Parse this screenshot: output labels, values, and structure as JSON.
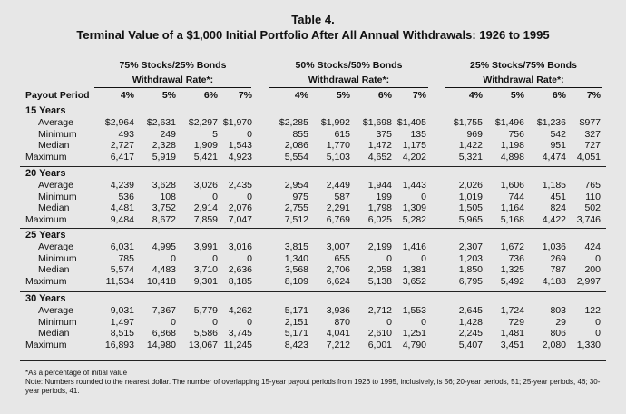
{
  "title": "Table 4.",
  "subtitle": "Terminal Value of a $1,000 Initial Portfolio After All Annual Withdrawals: 1926 to 1995",
  "groups": [
    {
      "line1": "75% Stocks/25% Bonds",
      "line2": "Withdrawal Rate*:"
    },
    {
      "line1": "50% Stocks/50% Bonds",
      "line2": "Withdrawal Rate*:"
    },
    {
      "line1": "25% Stocks/75% Bonds",
      "line2": "Withdrawal Rate*:"
    }
  ],
  "payout_header": "Payout Period",
  "rate_headers": [
    "4%",
    "5%",
    "6%",
    "7%",
    "4%",
    "5%",
    "6%",
    "7%",
    "4%",
    "5%",
    "6%",
    "7%"
  ],
  "sections": [
    {
      "label": "15 Years",
      "rows": [
        {
          "label": "Average",
          "values": [
            "$2,964",
            "$2,631",
            "$2,297",
            "$1,970",
            "$2,285",
            "$1,992",
            "$1,698",
            "$1,405",
            "$1,755",
            "$1,496",
            "$1,236",
            "$977"
          ]
        },
        {
          "label": "Minimum",
          "values": [
            "493",
            "249",
            "5",
            "0",
            "855",
            "615",
            "375",
            "135",
            "969",
            "756",
            "542",
            "327"
          ]
        },
        {
          "label": "Median",
          "values": [
            "2,727",
            "2,328",
            "1,909",
            "1,543",
            "2,086",
            "1,770",
            "1,472",
            "1,175",
            "1,422",
            "1,198",
            "951",
            "727"
          ]
        },
        {
          "label": "Maximum",
          "values": [
            "6,417",
            "5,919",
            "5,421",
            "4,923",
            "5,554",
            "5,103",
            "4,652",
            "4,202",
            "5,321",
            "4,898",
            "4,474",
            "4,051"
          ]
        }
      ]
    },
    {
      "label": "20 Years",
      "rows": [
        {
          "label": "Average",
          "values": [
            "4,239",
            "3,628",
            "3,026",
            "2,435",
            "2,954",
            "2,449",
            "1,944",
            "1,443",
            "2,026",
            "1,606",
            "1,185",
            "765"
          ]
        },
        {
          "label": "Minimum",
          "values": [
            "536",
            "108",
            "0",
            "0",
            "975",
            "587",
            "199",
            "0",
            "1,019",
            "744",
            "451",
            "110"
          ]
        },
        {
          "label": "Median",
          "values": [
            "4,481",
            "3,752",
            "2,914",
            "2,076",
            "2,755",
            "2,291",
            "1,798",
            "1,309",
            "1,505",
            "1,164",
            "824",
            "502"
          ]
        },
        {
          "label": "Maximum",
          "values": [
            "9,484",
            "8,672",
            "7,859",
            "7,047",
            "7,512",
            "6,769",
            "6,025",
            "5,282",
            "5,965",
            "5,168",
            "4,422",
            "3,746"
          ]
        }
      ]
    },
    {
      "label": "25 Years",
      "rows": [
        {
          "label": "Average",
          "values": [
            "6,031",
            "4,995",
            "3,991",
            "3,016",
            "3,815",
            "3,007",
            "2,199",
            "1,416",
            "2,307",
            "1,672",
            "1,036",
            "424"
          ]
        },
        {
          "label": "Minimum",
          "values": [
            "785",
            "0",
            "0",
            "0",
            "1,340",
            "655",
            "0",
            "0",
            "1,203",
            "736",
            "269",
            "0"
          ]
        },
        {
          "label": "Median",
          "values": [
            "5,574",
            "4,483",
            "3,710",
            "2,636",
            "3,568",
            "2,706",
            "2,058",
            "1,381",
            "1,850",
            "1,325",
            "787",
            "200"
          ]
        },
        {
          "label": "Maximum",
          "values": [
            "11,534",
            "10,418",
            "9,301",
            "8,185",
            "8,109",
            "6,624",
            "5,138",
            "3,652",
            "6,795",
            "5,492",
            "4,188",
            "2,997"
          ]
        }
      ]
    },
    {
      "label": "30 Years",
      "rows": [
        {
          "label": "Average",
          "values": [
            "9,031",
            "7,367",
            "5,779",
            "4,262",
            "5,171",
            "3,936",
            "2,712",
            "1,553",
            "2,645",
            "1,724",
            "803",
            "122"
          ]
        },
        {
          "label": "Minimum",
          "values": [
            "1,497",
            "0",
            "0",
            "0",
            "2,151",
            "870",
            "0",
            "0",
            "1,428",
            "729",
            "29",
            "0"
          ]
        },
        {
          "label": "Median",
          "values": [
            "8,515",
            "6,868",
            "5,586",
            "3,745",
            "5,171",
            "4,041",
            "2,610",
            "1,251",
            "2,245",
            "1,481",
            "806",
            "0"
          ]
        },
        {
          "label": "Maximum",
          "values": [
            "16,893",
            "14,980",
            "13,067",
            "11,245",
            "8,423",
            "7,212",
            "6,001",
            "4,790",
            "5,407",
            "3,451",
            "2,080",
            "1,330"
          ]
        }
      ]
    }
  ],
  "footnote1": "*As a percentage of initial value",
  "footnote2": "Note: Numbers rounded to the nearest dollar. The number of overlapping 15-year payout periods from 1926 to 1995, inclusively, is 56; 20-year periods, 51; 25-year periods, 46; 30-year periods, 41."
}
